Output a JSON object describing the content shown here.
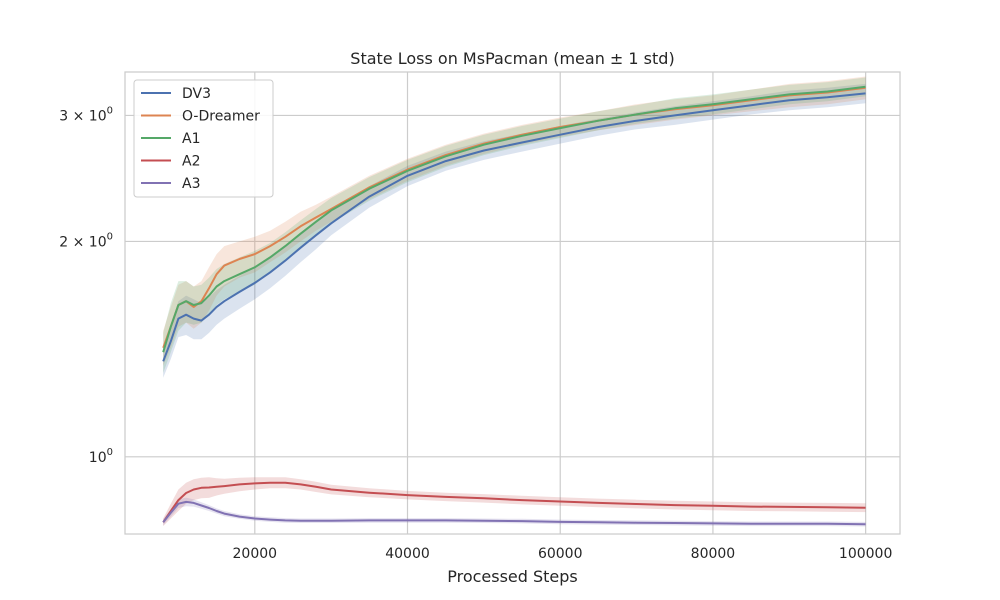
{
  "chart_data": {
    "type": "line",
    "title": "State Loss on MsPacman (mean ± 1 std)",
    "xlabel": "Processed Steps",
    "ylabel": "",
    "xlim": [
      3000,
      104500
    ],
    "ylim": [
      0.78,
      3.45
    ],
    "yscale": "log",
    "grid": true,
    "legend": "top-left",
    "x_ticks": [
      {
        "value": 20000,
        "label": "20000"
      },
      {
        "value": 40000,
        "label": "40000"
      },
      {
        "value": 60000,
        "label": "60000"
      },
      {
        "value": 80000,
        "label": "80000"
      },
      {
        "value": 100000,
        "label": "100000"
      }
    ],
    "y_ticks": [
      {
        "value": 1,
        "base": "10",
        "exp": "0"
      },
      {
        "value": 2,
        "base": "2 × 10",
        "exp": "0"
      },
      {
        "value": 3,
        "base": "3 × 10",
        "exp": "0"
      }
    ],
    "x": [
      8000,
      9000,
      10000,
      11000,
      12000,
      13000,
      14000,
      15000,
      16000,
      18000,
      20000,
      22000,
      24000,
      26000,
      28000,
      30000,
      35000,
      40000,
      45000,
      50000,
      55000,
      60000,
      65000,
      70000,
      75000,
      80000,
      85000,
      90000,
      95000,
      100000
    ],
    "series": [
      {
        "name": "DV3",
        "color": "#4c72b0",
        "values": [
          1.36,
          1.45,
          1.56,
          1.58,
          1.56,
          1.55,
          1.58,
          1.62,
          1.65,
          1.7,
          1.75,
          1.81,
          1.88,
          1.96,
          2.04,
          2.12,
          2.31,
          2.47,
          2.59,
          2.68,
          2.75,
          2.82,
          2.89,
          2.95,
          3.0,
          3.05,
          3.1,
          3.15,
          3.18,
          3.22
        ],
        "std": [
          0.07,
          0.08,
          0.09,
          0.1,
          0.1,
          0.09,
          0.09,
          0.09,
          0.09,
          0.09,
          0.09,
          0.09,
          0.09,
          0.09,
          0.09,
          0.08,
          0.08,
          0.08,
          0.08,
          0.08,
          0.08,
          0.08,
          0.08,
          0.08,
          0.09,
          0.09,
          0.09,
          0.1,
          0.1,
          0.1
        ]
      },
      {
        "name": "O-Dreamer",
        "color": "#dd8452",
        "values": [
          1.42,
          1.52,
          1.63,
          1.65,
          1.62,
          1.65,
          1.72,
          1.8,
          1.85,
          1.89,
          1.92,
          1.97,
          2.03,
          2.1,
          2.16,
          2.22,
          2.38,
          2.52,
          2.64,
          2.74,
          2.82,
          2.89,
          2.95,
          3.01,
          3.06,
          3.1,
          3.15,
          3.2,
          3.23,
          3.28
        ],
        "std": [
          0.08,
          0.1,
          0.11,
          0.11,
          0.11,
          0.11,
          0.12,
          0.12,
          0.12,
          0.11,
          0.11,
          0.1,
          0.1,
          0.1,
          0.09,
          0.09,
          0.09,
          0.09,
          0.09,
          0.09,
          0.09,
          0.09,
          0.09,
          0.1,
          0.1,
          0.1,
          0.11,
          0.12,
          0.12,
          0.12
        ]
      },
      {
        "name": "A1",
        "color": "#55a868",
        "values": [
          1.4,
          1.52,
          1.63,
          1.65,
          1.63,
          1.64,
          1.68,
          1.73,
          1.76,
          1.8,
          1.84,
          1.9,
          1.97,
          2.05,
          2.13,
          2.21,
          2.37,
          2.51,
          2.63,
          2.73,
          2.81,
          2.88,
          2.95,
          3.01,
          3.07,
          3.11,
          3.16,
          3.21,
          3.24,
          3.29
        ],
        "std": [
          0.09,
          0.12,
          0.13,
          0.11,
          0.1,
          0.1,
          0.1,
          0.1,
          0.1,
          0.1,
          0.1,
          0.09,
          0.09,
          0.09,
          0.09,
          0.09,
          0.09,
          0.09,
          0.09,
          0.09,
          0.09,
          0.09,
          0.09,
          0.09,
          0.1,
          0.1,
          0.1,
          0.1,
          0.1,
          0.1
        ]
      },
      {
        "name": "A2",
        "color": "#c44e52",
        "values": [
          0.81,
          0.84,
          0.87,
          0.89,
          0.9,
          0.905,
          0.906,
          0.908,
          0.91,
          0.915,
          0.918,
          0.92,
          0.92,
          0.915,
          0.908,
          0.9,
          0.891,
          0.884,
          0.879,
          0.875,
          0.87,
          0.866,
          0.862,
          0.859,
          0.856,
          0.854,
          0.852,
          0.851,
          0.85,
          0.849
        ],
        "std": [
          0.01,
          0.02,
          0.03,
          0.03,
          0.03,
          0.03,
          0.03,
          0.025,
          0.022,
          0.02,
          0.018,
          0.016,
          0.016,
          0.015,
          0.015,
          0.014,
          0.013,
          0.012,
          0.012,
          0.012,
          0.012,
          0.012,
          0.012,
          0.012,
          0.012,
          0.012,
          0.012,
          0.012,
          0.012,
          0.012
        ]
      },
      {
        "name": "A3",
        "color": "#8172b3",
        "values": [
          0.81,
          0.835,
          0.86,
          0.865,
          0.862,
          0.855,
          0.848,
          0.84,
          0.833,
          0.825,
          0.82,
          0.817,
          0.815,
          0.814,
          0.814,
          0.814,
          0.815,
          0.815,
          0.815,
          0.814,
          0.813,
          0.811,
          0.81,
          0.809,
          0.808,
          0.807,
          0.806,
          0.806,
          0.806,
          0.805
        ],
        "std": [
          0.008,
          0.01,
          0.012,
          0.012,
          0.01,
          0.009,
          0.008,
          0.007,
          0.007,
          0.006,
          0.006,
          0.006,
          0.006,
          0.006,
          0.006,
          0.006,
          0.006,
          0.006,
          0.006,
          0.006,
          0.006,
          0.006,
          0.006,
          0.006,
          0.006,
          0.006,
          0.006,
          0.006,
          0.006,
          0.006
        ]
      }
    ]
  }
}
